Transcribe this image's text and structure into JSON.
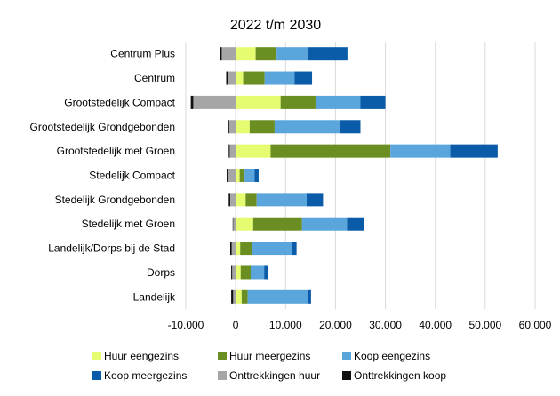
{
  "chart_data": {
    "type": "bar",
    "orientation": "horizontal",
    "stacked": true,
    "title": "2022 t/m 2030",
    "xlim": [
      -10000,
      60000
    ],
    "x_ticks": [
      -10000,
      0,
      10000,
      20000,
      30000,
      40000,
      50000,
      60000
    ],
    "x_tick_labels": [
      "-10.000",
      "0",
      "10.000",
      "20.000",
      "30.000",
      "40.000",
      "50.000",
      "60.000"
    ],
    "grid": "vertical",
    "legend_position": "bottom",
    "categories": [
      "Centrum Plus",
      "Centrum",
      "Grootstedelijk Compact",
      "Grootstedelijk Grondgebonden",
      "Grootstedelijk met Groen",
      "Stedelijk Compact",
      "Stedelijk Grondgebonden",
      "Stedelijk met Groen",
      "Landelijk/Dorps bij de Stad",
      "Dorps",
      "Landelijk"
    ],
    "series": [
      {
        "name": "Huur eengezins",
        "color": "#e5fc71",
        "values": [
          4000,
          1500,
          9000,
          2800,
          7000,
          800,
          2000,
          3500,
          900,
          1000,
          1200
        ]
      },
      {
        "name": "Huur meergezins",
        "color": "#6b8e23",
        "values": [
          4200,
          4300,
          7000,
          5000,
          24000,
          1000,
          2200,
          9800,
          2300,
          2000,
          1200
        ]
      },
      {
        "name": "Koop eengezins",
        "color": "#5aa5dc",
        "values": [
          6200,
          6000,
          9000,
          13000,
          12000,
          2000,
          10000,
          9000,
          8000,
          2700,
          12000
        ]
      },
      {
        "name": "Koop meergezins",
        "color": "#0a5ca8",
        "values": [
          8000,
          3500,
          5000,
          4200,
          9500,
          800,
          3300,
          3500,
          1000,
          800,
          700
        ]
      },
      {
        "name": "Onttrekkingen huur",
        "color": "#a6a6a6",
        "values": [
          -2800,
          -1600,
          -8500,
          -1300,
          -1200,
          -1600,
          -1100,
          -500,
          -800,
          -700,
          -500
        ]
      },
      {
        "name": "Onttrekkingen koop",
        "color": "#111111",
        "values": [
          -300,
          -300,
          -500,
          -300,
          -200,
          -200,
          -300,
          -100,
          -300,
          -200,
          -400
        ]
      }
    ]
  }
}
